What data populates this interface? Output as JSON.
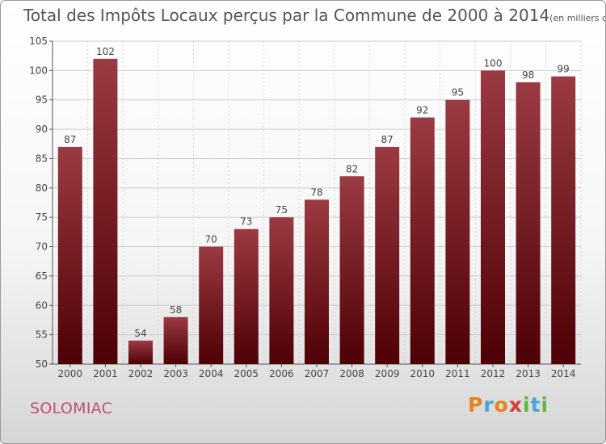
{
  "chart_data": {
    "type": "bar",
    "title": "Total des Impôts Locaux perçus par la Commune de 2000 à 2014",
    "subtitle": "(en milliers d'€)",
    "categories": [
      "2000",
      "2001",
      "2002",
      "2003",
      "2004",
      "2005",
      "2006",
      "2007",
      "2008",
      "2009",
      "2010",
      "2011",
      "2012",
      "2013",
      "2014"
    ],
    "values": [
      87,
      102,
      54,
      58,
      70,
      73,
      75,
      78,
      82,
      87,
      92,
      95,
      100,
      98,
      99
    ],
    "ylim": [
      50,
      105
    ],
    "yticks": [
      50,
      55,
      60,
      65,
      70,
      75,
      80,
      85,
      90,
      95,
      100,
      105
    ],
    "xlabel": "",
    "ylabel": "",
    "grid": true,
    "colors": {
      "bar_light": "#9b3a42",
      "bar_dark": "#4d0005",
      "grid": "#cccccc"
    }
  },
  "commune": "SOLOMIAC",
  "logo": {
    "letters": [
      "P",
      "r",
      "o",
      "x",
      "i",
      "t",
      "i"
    ],
    "colors": [
      "#e8821e",
      "#4aa3d8",
      "#e8821e",
      "#d93a3a",
      "#62b345",
      "#4aa3d8",
      "#62b345"
    ]
  }
}
